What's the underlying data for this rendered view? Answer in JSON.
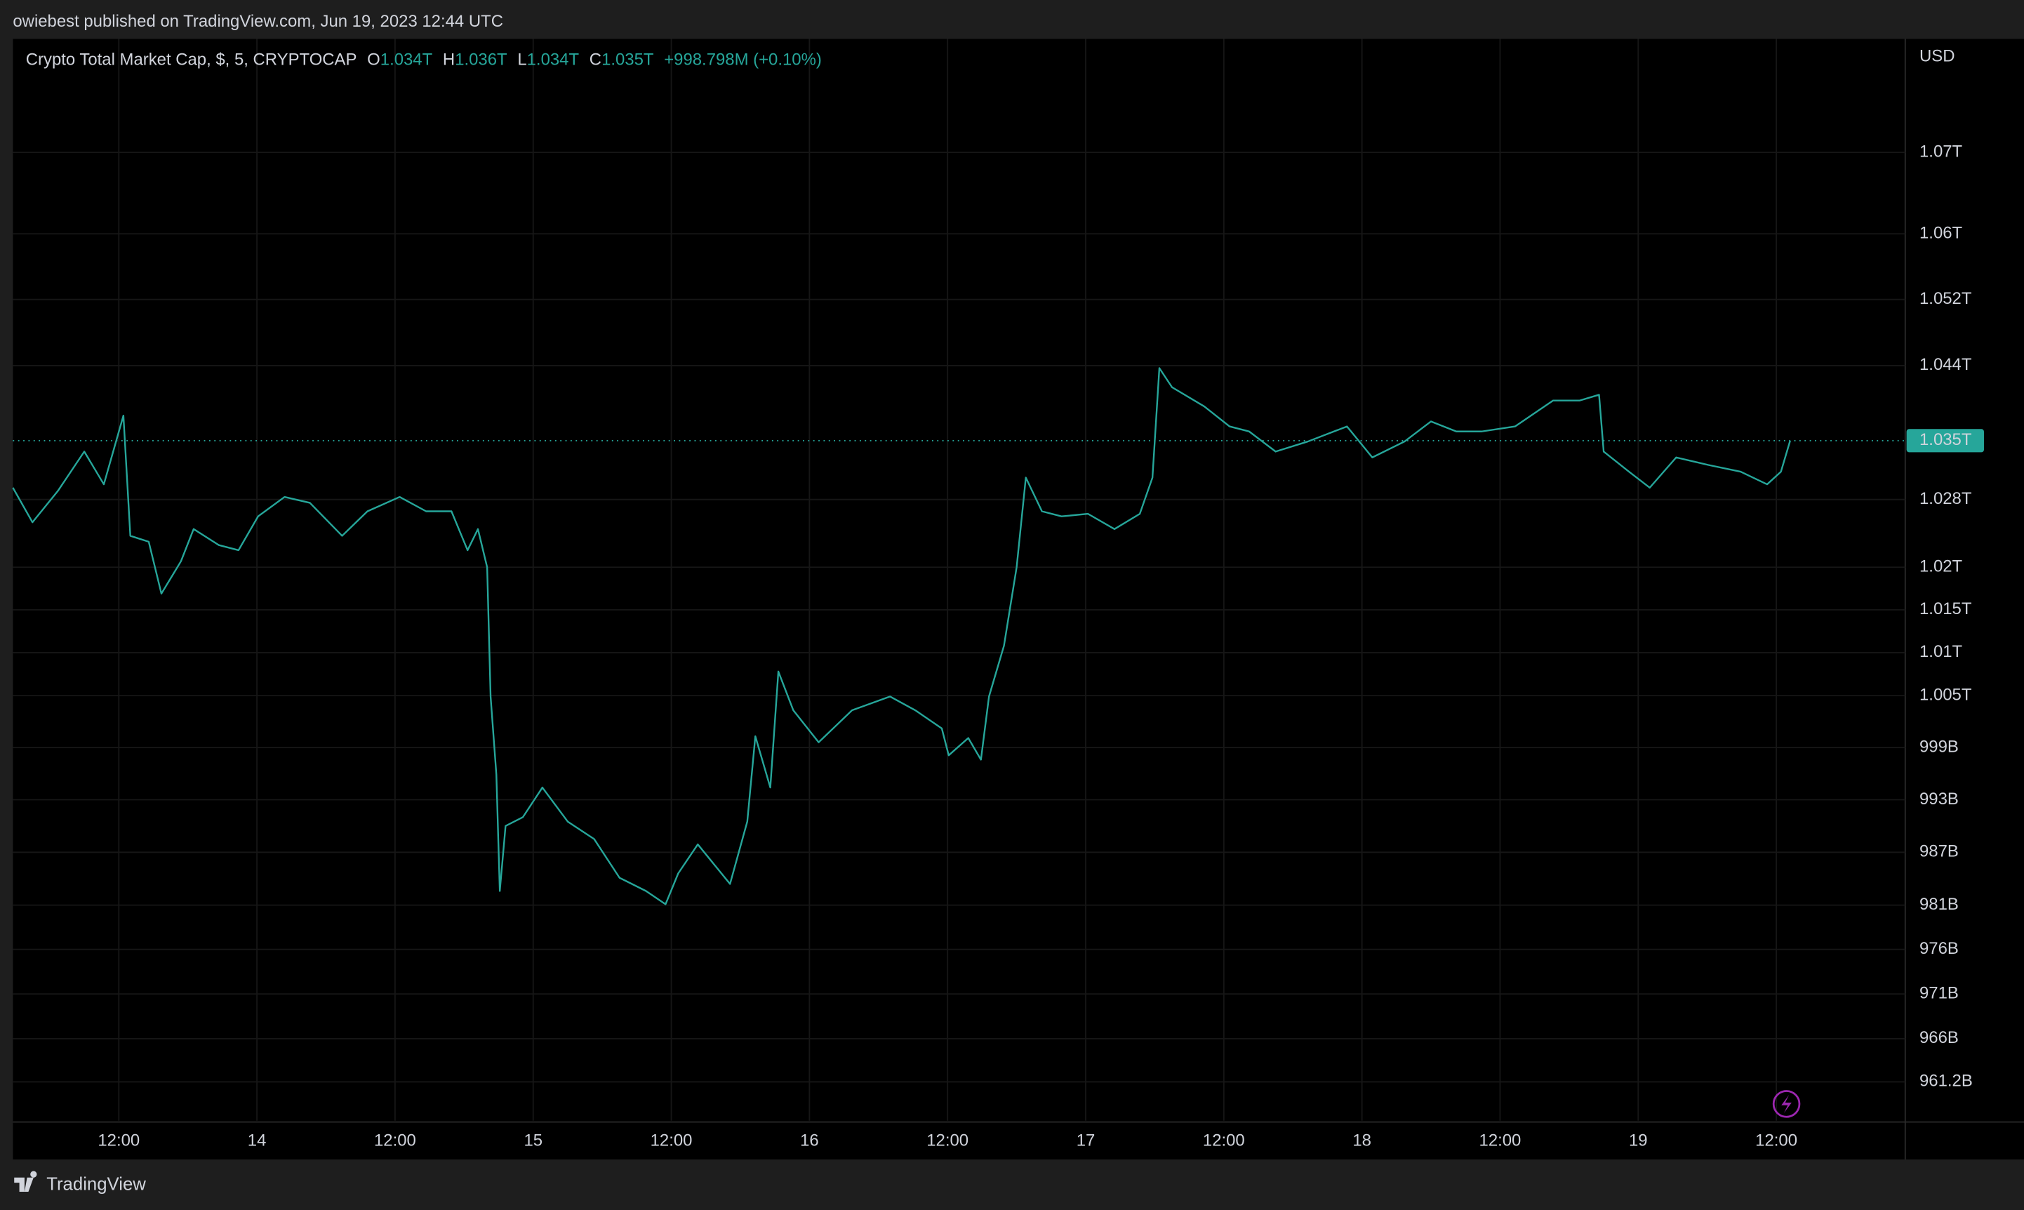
{
  "page": {
    "byline": "owiebest published on TradingView.com, Jun 19, 2023 12:44 UTC",
    "brand": "TradingView"
  },
  "chart_data": {
    "type": "line",
    "legend": {
      "symbol": "Crypto Total Market Cap, $, 5, CRYPTOCAP",
      "ohlc": [
        {
          "key": "O",
          "value": "1.034T"
        },
        {
          "key": "H",
          "value": "1.036T"
        },
        {
          "key": "L",
          "value": "1.034T"
        },
        {
          "key": "C",
          "value": "1.035T"
        }
      ],
      "change": "+998.798M (+0.10%)"
    },
    "currency": "USD",
    "y_scale": "log",
    "grid": true,
    "color": "#26a69a",
    "x": [
      2.8,
      4.5,
      6.7,
      9,
      10.7,
      12.4,
      13,
      14.6,
      15.7,
      17.4,
      18.5,
      20.7,
      22.4,
      24.1,
      26.4,
      28.6,
      31.4,
      33.6,
      36.4,
      38.7,
      40.9,
      42.3,
      43.2,
      44,
      44.3,
      44.8,
      45.1,
      45.6,
      47.1,
      48.8,
      51,
      53.3,
      55.5,
      57.8,
      59.5,
      60.6,
      62.3,
      65.1,
      66.6,
      67.3,
      68.6,
      69.3,
      70.6,
      72.8,
      75.7,
      79,
      81.2,
      83.5,
      84.1,
      85.8,
      86.9,
      87.6,
      88.9,
      90,
      90.8,
      92.2,
      93.9,
      96.2,
      98.5,
      100.7,
      101.8,
      102.4,
      103.5,
      106.3,
      108.5,
      110.2,
      112.5,
      115.3,
      118.7,
      120.9,
      123.7,
      126,
      128.2,
      130.4,
      133.3,
      136.6,
      138.9,
      140.6,
      141,
      143.2,
      145,
      147.3,
      150.1,
      152.9,
      155.2,
      156.4,
      157.2
    ],
    "values": [
      1029.4,
      1025.3,
      1029,
      1033.7,
      1029.8,
      1038,
      1023.7,
      1023,
      1016.9,
      1020.7,
      1024.5,
      1022.6,
      1022,
      1026,
      1028.3,
      1027.6,
      1023.7,
      1026.6,
      1028.3,
      1026.6,
      1026.6,
      1022,
      1024.5,
      1020,
      1004.9,
      995.9,
      982.6,
      990,
      991,
      994.4,
      990.5,
      988.5,
      984.1,
      982.6,
      981.1,
      984.6,
      987.9,
      983.4,
      990.5,
      1000.3,
      994.4,
      1007.8,
      1003.3,
      999.6,
      1003.3,
      1004.9,
      1003.3,
      1001.2,
      998.1,
      1000.1,
      997.6,
      1004.9,
      1010.8,
      1020,
      1030.6,
      1026.6,
      1026,
      1026.3,
      1024.5,
      1026.3,
      1030.6,
      1043.7,
      1041.4,
      1039.1,
      1036.7,
      1036.1,
      1033.7,
      1034.9,
      1036.7,
      1033,
      1034.9,
      1037.3,
      1036.1,
      1036.1,
      1036.7,
      1039.8,
      1039.8,
      1040.5,
      1033.7,
      1031.3,
      1029.4,
      1033,
      1032.1,
      1031.3,
      1029.8,
      1031.3,
      1035
    ],
    "xlim": [
      2.8,
      167.2
    ],
    "xticks": [
      {
        "value": 12,
        "label": "12:00"
      },
      {
        "value": 24,
        "label": "14"
      },
      {
        "value": 36,
        "label": "12:00"
      },
      {
        "value": 48,
        "label": "15"
      },
      {
        "value": 60,
        "label": "12:00"
      },
      {
        "value": 72,
        "label": "16"
      },
      {
        "value": 84,
        "label": "12:00"
      },
      {
        "value": 96,
        "label": "17"
      },
      {
        "value": 108,
        "label": "12:00"
      },
      {
        "value": 120,
        "label": "18"
      },
      {
        "value": 132,
        "label": "12:00"
      },
      {
        "value": 144,
        "label": "19"
      },
      {
        "value": 156,
        "label": "12:00"
      }
    ],
    "ylim": [
      956.9,
      1084.1
    ],
    "yticks": [
      {
        "value": 1070,
        "label": "1.07T"
      },
      {
        "value": 1060,
        "label": "1.06T"
      },
      {
        "value": 1052,
        "label": "1.052T"
      },
      {
        "value": 1044,
        "label": "1.044T"
      },
      {
        "value": 1028,
        "label": "1.028T"
      },
      {
        "value": 1020,
        "label": "1.02T"
      },
      {
        "value": 1015,
        "label": "1.015T"
      },
      {
        "value": 1010,
        "label": "1.01T"
      },
      {
        "value": 1005,
        "label": "1.005T"
      },
      {
        "value": 999,
        "label": "999B"
      },
      {
        "value": 993,
        "label": "993B"
      },
      {
        "value": 987,
        "label": "987B"
      },
      {
        "value": 981,
        "label": "981B"
      },
      {
        "value": 976,
        "label": "976B"
      },
      {
        "value": 971,
        "label": "971B"
      },
      {
        "value": 966,
        "label": "966B"
      },
      {
        "value": 961.2,
        "label": "961.2B"
      }
    ],
    "last_price": {
      "value": 1035,
      "label": "1.035T",
      "color": "#26a69a"
    }
  }
}
